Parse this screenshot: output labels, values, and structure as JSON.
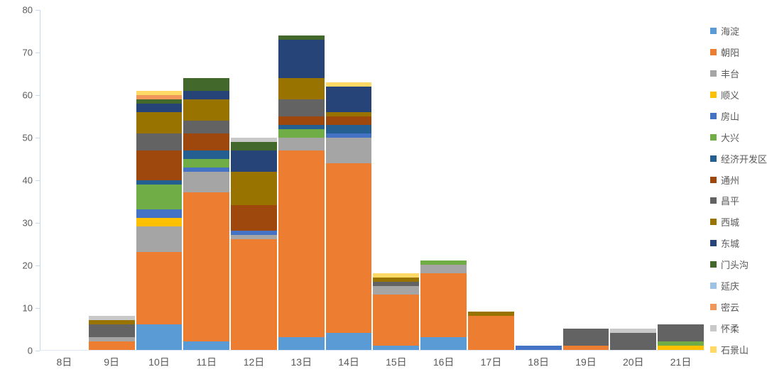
{
  "chart_data": {
    "type": "bar",
    "stacked": true,
    "title": "",
    "xlabel": "",
    "ylabel": "",
    "ylim": [
      0,
      80
    ],
    "ytick_interval": 10,
    "yticks": [
      "0",
      "10",
      "20",
      "30",
      "40",
      "50",
      "60",
      "70",
      "80"
    ],
    "grid": false,
    "legend_position": "right",
    "categories": [
      "8日",
      "9日",
      "10日",
      "11日",
      "12日",
      "13日",
      "14日",
      "15日",
      "16日",
      "17日",
      "18日",
      "19日",
      "20日",
      "21日"
    ],
    "series": [
      {
        "name": "海淀",
        "color": "#5B9BD5",
        "values": [
          0,
          0,
          6,
          2,
          0,
          3,
          4,
          1,
          3,
          0,
          0,
          0,
          0,
          0
        ]
      },
      {
        "name": "朝阳",
        "color": "#ED7D31",
        "values": [
          0,
          2,
          17,
          35,
          26,
          44,
          40,
          12,
          15,
          8,
          0,
          1,
          0,
          0
        ]
      },
      {
        "name": "丰台",
        "color": "#A5A5A5",
        "values": [
          0,
          1,
          6,
          5,
          1,
          3,
          6,
          2,
          2,
          0,
          0,
          0,
          0,
          0
        ]
      },
      {
        "name": "顺义",
        "color": "#FFC000",
        "values": [
          0,
          0,
          2,
          0,
          0,
          0,
          0,
          0,
          0,
          0,
          0,
          0,
          0,
          1
        ]
      },
      {
        "name": "房山",
        "color": "#4472C4",
        "values": [
          0,
          0,
          2,
          1,
          1,
          0,
          1,
          0,
          0,
          0,
          1,
          0,
          0,
          0
        ]
      },
      {
        "name": "大兴",
        "color": "#70AD47",
        "values": [
          0,
          0,
          6,
          2,
          0,
          2,
          0,
          0,
          1,
          0,
          0,
          0,
          0,
          1
        ]
      },
      {
        "name": "经济开发区",
        "color": "#255E91",
        "values": [
          0,
          0,
          1,
          2,
          0,
          1,
          2,
          0,
          0,
          0,
          0,
          0,
          0,
          0
        ]
      },
      {
        "name": "通州",
        "color": "#9E480E",
        "values": [
          0,
          0,
          7,
          4,
          6,
          2,
          2,
          0,
          0,
          0,
          0,
          0,
          0,
          0
        ]
      },
      {
        "name": "昌平",
        "color": "#636363",
        "values": [
          0,
          3,
          4,
          3,
          0,
          4,
          0,
          1,
          0,
          0,
          0,
          4,
          4,
          4
        ]
      },
      {
        "name": "西城",
        "color": "#997300",
        "values": [
          0,
          1,
          5,
          5,
          8,
          5,
          1,
          1,
          0,
          1,
          0,
          0,
          0,
          0
        ]
      },
      {
        "name": "东城",
        "color": "#264478",
        "values": [
          0,
          0,
          2,
          2,
          5,
          9,
          6,
          0,
          0,
          0,
          0,
          0,
          0,
          0
        ]
      },
      {
        "name": "门头沟",
        "color": "#43682B",
        "values": [
          0,
          0,
          1,
          3,
          2,
          1,
          0,
          0,
          0,
          0,
          0,
          0,
          0,
          0
        ]
      },
      {
        "name": "延庆",
        "color": "#9DC3E6",
        "values": [
          0,
          0,
          0,
          0,
          0,
          0,
          0,
          0,
          0,
          0,
          0,
          0,
          0,
          0
        ]
      },
      {
        "name": "密云",
        "color": "#F1975A",
        "values": [
          0,
          0,
          1,
          0,
          0,
          0,
          0,
          0,
          0,
          0,
          0,
          0,
          0,
          0
        ]
      },
      {
        "name": "怀柔",
        "color": "#C9C9C9",
        "values": [
          0,
          1,
          0,
          0,
          1,
          0,
          0,
          0,
          0,
          0,
          0,
          0,
          1,
          0
        ]
      },
      {
        "name": "石景山",
        "color": "#FFD966",
        "values": [
          0,
          0,
          1,
          0,
          0,
          0,
          1,
          1,
          0,
          0,
          0,
          0,
          0,
          0
        ]
      }
    ],
    "bar_totals": [
      0,
      8,
      61,
      64,
      50,
      74,
      63,
      18,
      21,
      9,
      1,
      5,
      5,
      6
    ]
  }
}
